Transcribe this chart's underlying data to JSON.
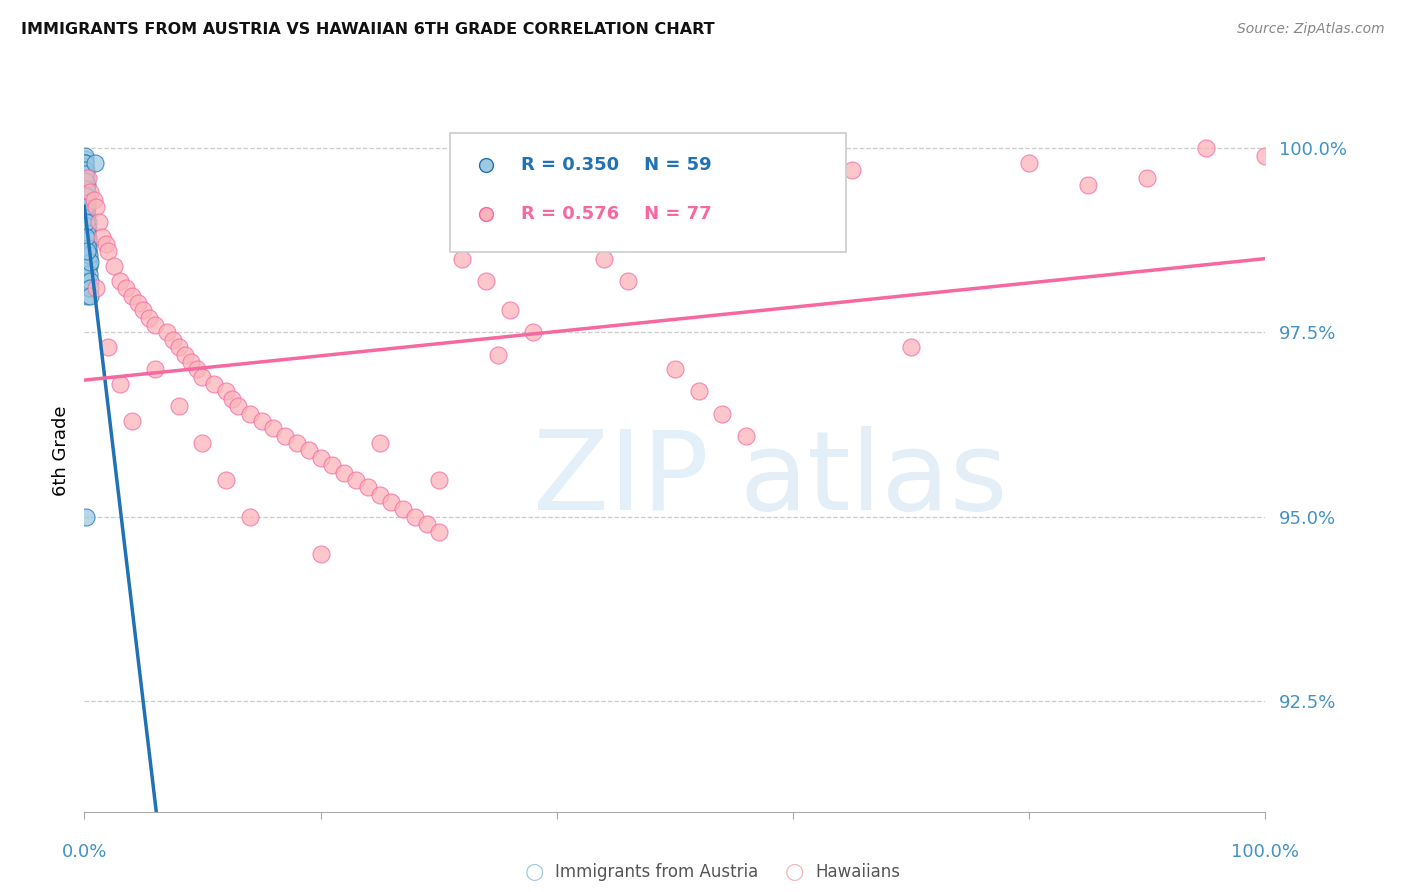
{
  "title": "IMMIGRANTS FROM AUSTRIA VS HAWAIIAN 6TH GRADE CORRELATION CHART",
  "source": "Source: ZipAtlas.com",
  "ylabel": "6th Grade",
  "legend1_label": "Immigrants from Austria",
  "legend2_label": "Hawaiians",
  "R1": 0.35,
  "N1": 59,
  "R2": 0.576,
  "N2": 77,
  "color_blue": "#9ecae1",
  "color_pink": "#fbb4b9",
  "color_blue_dark": "#2171b5",
  "color_pink_dark": "#f768a1",
  "color_axis": "#4292c6",
  "ytick_values": [
    92.5,
    95.0,
    97.5,
    100.0
  ],
  "ytick_labels": [
    "92.5%",
    "95.0%",
    "97.5%",
    "100.0%"
  ],
  "xmin": 0.0,
  "xmax": 100.0,
  "ymin": 91.0,
  "ymax": 100.8,
  "blue_x": [
    0.05,
    0.07,
    0.08,
    0.09,
    0.1,
    0.1,
    0.11,
    0.12,
    0.12,
    0.13,
    0.13,
    0.14,
    0.15,
    0.15,
    0.16,
    0.16,
    0.17,
    0.18,
    0.18,
    0.19,
    0.2,
    0.2,
    0.21,
    0.22,
    0.23,
    0.24,
    0.25,
    0.27,
    0.28,
    0.3,
    0.32,
    0.35,
    0.38,
    0.4,
    0.42,
    0.45,
    0.48,
    0.5,
    0.06,
    0.07,
    0.08,
    0.09,
    0.1,
    0.11,
    0.13,
    0.15,
    0.18,
    0.2,
    0.25,
    0.3,
    0.35,
    0.4,
    0.5,
    0.9,
    0.08,
    0.12,
    0.16,
    0.22,
    0.15
  ],
  "blue_y": [
    99.85,
    99.9,
    99.8,
    99.75,
    99.7,
    99.6,
    99.5,
    99.4,
    99.3,
    99.2,
    99.1,
    99.0,
    98.9,
    98.8,
    98.7,
    98.6,
    98.5,
    98.4,
    98.3,
    98.2,
    98.1,
    98.0,
    99.5,
    99.4,
    99.3,
    99.2,
    99.1,
    99.0,
    98.9,
    98.8,
    98.7,
    98.6,
    98.5,
    98.4,
    98.3,
    98.2,
    98.1,
    98.0,
    99.8,
    99.7,
    99.65,
    99.55,
    99.45,
    99.35,
    99.25,
    99.15,
    99.05,
    98.95,
    98.85,
    98.75,
    98.65,
    98.55,
    98.45,
    99.8,
    99.2,
    99.0,
    98.8,
    98.6,
    95.0
  ],
  "pink_x": [
    0.3,
    0.5,
    0.8,
    1.0,
    1.2,
    1.5,
    1.8,
    2.0,
    2.5,
    3.0,
    3.5,
    4.0,
    4.5,
    5.0,
    5.5,
    6.0,
    7.0,
    7.5,
    8.0,
    8.5,
    9.0,
    9.5,
    10.0,
    11.0,
    12.0,
    12.5,
    13.0,
    14.0,
    15.0,
    16.0,
    17.0,
    18.0,
    19.0,
    20.0,
    21.0,
    22.0,
    23.0,
    24.0,
    25.0,
    26.0,
    27.0,
    28.0,
    29.0,
    30.0,
    32.0,
    34.0,
    36.0,
    38.0,
    40.0,
    42.0,
    44.0,
    46.0,
    50.0,
    52.0,
    54.0,
    56.0,
    60.0,
    65.0,
    70.0,
    80.0,
    85.0,
    90.0,
    95.0,
    100.0,
    1.0,
    2.0,
    3.0,
    4.0,
    6.0,
    8.0,
    10.0,
    12.0,
    14.0,
    20.0,
    25.0,
    30.0,
    35.0
  ],
  "pink_y": [
    99.6,
    99.4,
    99.3,
    99.2,
    99.0,
    98.8,
    98.7,
    98.6,
    98.4,
    98.2,
    98.1,
    98.0,
    97.9,
    97.8,
    97.7,
    97.6,
    97.5,
    97.4,
    97.3,
    97.2,
    97.1,
    97.0,
    96.9,
    96.8,
    96.7,
    96.6,
    96.5,
    96.4,
    96.3,
    96.2,
    96.1,
    96.0,
    95.9,
    95.8,
    95.7,
    95.6,
    95.5,
    95.4,
    95.3,
    95.2,
    95.1,
    95.0,
    94.9,
    94.8,
    98.5,
    98.2,
    97.8,
    97.5,
    99.2,
    98.8,
    98.5,
    98.2,
    97.0,
    96.7,
    96.4,
    96.1,
    99.6,
    99.7,
    97.3,
    99.8,
    99.5,
    99.6,
    100.0,
    99.9,
    98.1,
    97.3,
    96.8,
    96.3,
    97.0,
    96.5,
    96.0,
    95.5,
    95.0,
    94.5,
    96.0,
    95.5,
    97.2
  ]
}
